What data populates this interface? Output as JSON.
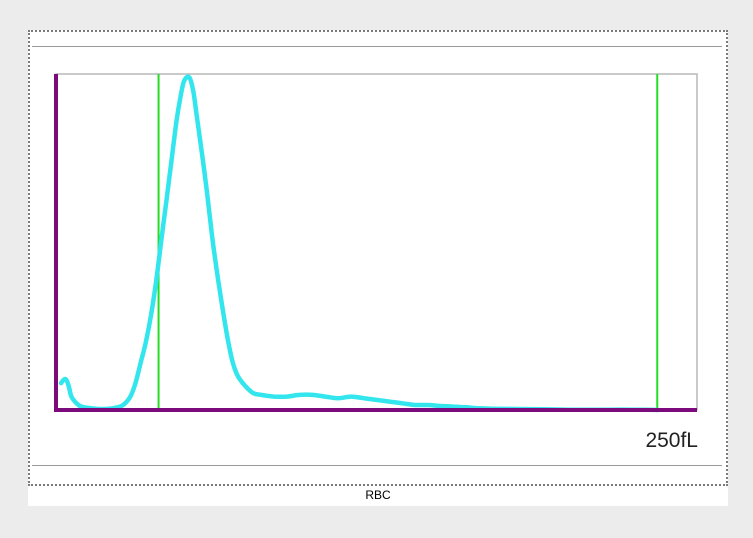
{
  "chart_data": {
    "type": "line",
    "title": "RBC",
    "xlabel": "",
    "ylabel": "",
    "x_max_label": "250fL",
    "xlim": [
      0,
      250
    ],
    "ylim": [
      0,
      100
    ],
    "grid": false,
    "series": [
      {
        "color": "#33e6ee",
        "points": [
          [
            2,
            8
          ],
          [
            3,
            9
          ],
          [
            4,
            9
          ],
          [
            5,
            7
          ],
          [
            6,
            4
          ],
          [
            8,
            2
          ],
          [
            10,
            1
          ],
          [
            14,
            0.5
          ],
          [
            18,
            0.3
          ],
          [
            22,
            0.5
          ],
          [
            25,
            1
          ],
          [
            27,
            2
          ],
          [
            29,
            4
          ],
          [
            31,
            8
          ],
          [
            33,
            14
          ],
          [
            35,
            20
          ],
          [
            37,
            28
          ],
          [
            39,
            38
          ],
          [
            41,
            50
          ],
          [
            43,
            62
          ],
          [
            45,
            74
          ],
          [
            47,
            86
          ],
          [
            48.5,
            93
          ],
          [
            50,
            98
          ],
          [
            52,
            99
          ],
          [
            53.5,
            95
          ],
          [
            55,
            87
          ],
          [
            57,
            76
          ],
          [
            59,
            64
          ],
          [
            61,
            51
          ],
          [
            63,
            40
          ],
          [
            65,
            30
          ],
          [
            67,
            21
          ],
          [
            69,
            14
          ],
          [
            71,
            10
          ],
          [
            74,
            7
          ],
          [
            77,
            5
          ],
          [
            80,
            4.5
          ],
          [
            85,
            4
          ],
          [
            90,
            4
          ],
          [
            95,
            4.5
          ],
          [
            100,
            4.5
          ],
          [
            105,
            4
          ],
          [
            110,
            3.5
          ],
          [
            115,
            4
          ],
          [
            120,
            3.5
          ],
          [
            125,
            3
          ],
          [
            130,
            2.5
          ],
          [
            135,
            2
          ],
          [
            140,
            1.5
          ],
          [
            145,
            1.5
          ],
          [
            150,
            1.2
          ],
          [
            155,
            1
          ],
          [
            160,
            0.8
          ],
          [
            165,
            0.5
          ],
          [
            170,
            0.4
          ],
          [
            180,
            0.3
          ],
          [
            190,
            0.2
          ],
          [
            200,
            0.1
          ],
          [
            215,
            0.1
          ],
          [
            230,
            0.1
          ],
          [
            235,
            0
          ]
        ]
      }
    ],
    "gates": [
      40,
      234.5
    ],
    "colors": {
      "axis": "#7d0a7d",
      "frame": "#b8b8b8",
      "gate": "#22dd22",
      "curve": "#33e6ee"
    }
  }
}
